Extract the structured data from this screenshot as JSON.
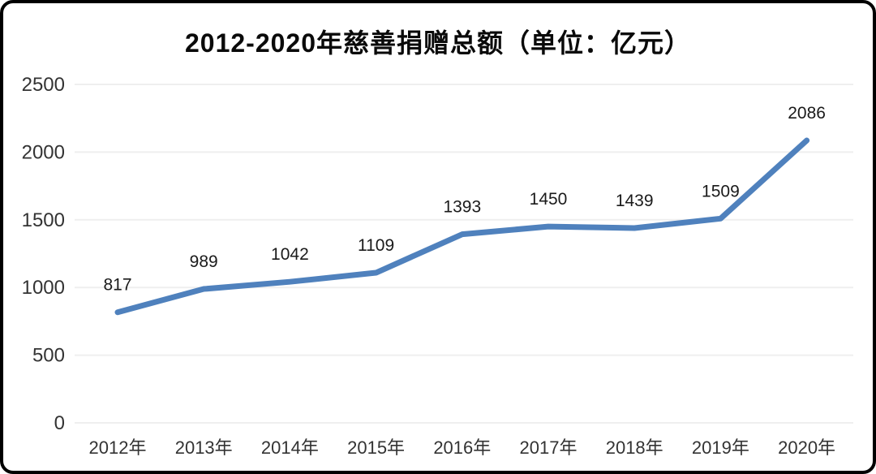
{
  "frame": {
    "background": "#ffffff",
    "border_color": "#000000"
  },
  "chart_data": {
    "type": "line",
    "title": "2012-2020年慈善捐赠总额（单位：亿元）",
    "categories": [
      "2012年",
      "2013年",
      "2014年",
      "2015年",
      "2016年",
      "2017年",
      "2018年",
      "2019年",
      "2020年"
    ],
    "values": [
      817,
      989,
      1042,
      1109,
      1393,
      1450,
      1439,
      1509,
      2086
    ],
    "xlabel": "",
    "ylabel": "",
    "ylim": [
      0,
      2500
    ],
    "yticks": [
      0,
      500,
      1000,
      1500,
      2000,
      2500
    ],
    "grid": true,
    "legend": "none",
    "data_labels": true,
    "colors": {
      "line": "#4f81bd",
      "gridline": "#efefef",
      "axis_label": "#333333",
      "data_label": "#1a1a1a",
      "title": "#0a0a0a"
    }
  }
}
